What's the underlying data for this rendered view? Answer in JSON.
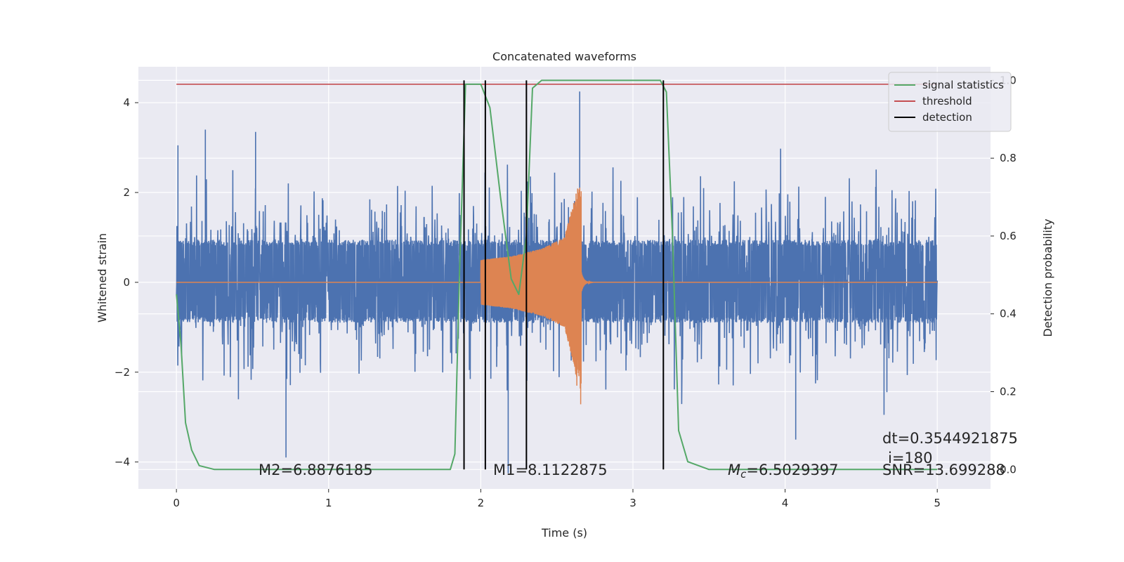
{
  "chart_data": {
    "type": "line",
    "title": "Concatenated waveforms",
    "xlabel": "Time (s)",
    "ylabel_left": "Whitened strain",
    "ylabel_right": "Detection probability",
    "xlim": [
      -0.25,
      5.35
    ],
    "ylim_left": [
      -4.6,
      4.8
    ],
    "ylim_right": [
      -0.05,
      1.035
    ],
    "x_ticks": [
      0,
      1,
      2,
      3,
      4,
      5
    ],
    "x_tick_labels": [
      "0",
      "1",
      "2",
      "3",
      "4",
      "5"
    ],
    "y_left_ticks": [
      -4,
      -2,
      0,
      2,
      4
    ],
    "y_left_tick_labels": [
      "−4",
      "−2",
      "0",
      "2",
      "4"
    ],
    "y_right_ticks": [
      0.0,
      0.2,
      0.4,
      0.6,
      0.8,
      1.0
    ],
    "y_right_tick_labels": [
      "0.0",
      "0.2",
      "0.4",
      "0.6",
      "0.8",
      "1.0"
    ],
    "grid": true,
    "legend_position": "top-right",
    "legend": [
      "signal statistics",
      "threshold",
      "detection"
    ],
    "colors": {
      "noise": "#4c72b0",
      "template": "#dd8452",
      "statistics": "#55a868",
      "threshold": "#c44e52",
      "detection": "#000000",
      "background": "#eaeaf2"
    },
    "series": [
      {
        "name": "whitened strain (noise)",
        "axis": "left",
        "x_range": [
          0,
          5
        ],
        "typical_band": [
          -0.9,
          0.95
        ],
        "peak_values": [
          {
            "x": 0.01,
            "y": 3.05
          },
          {
            "x": 0.19,
            "y": 3.4
          },
          {
            "x": 0.52,
            "y": 3.35
          },
          {
            "x": 0.72,
            "y": -3.9
          },
          {
            "x": 2.65,
            "y": 4.25
          },
          {
            "x": 2.18,
            "y": -4.25
          },
          {
            "x": 4.07,
            "y": -3.5
          },
          {
            "x": 4.65,
            "y": -2.95
          }
        ]
      },
      {
        "name": "injected waveform",
        "axis": "left",
        "x_range": [
          0,
          5
        ],
        "active_range": [
          2.0,
          2.66
        ],
        "envelope": [
          {
            "x": 2.0,
            "amp": 0.5
          },
          {
            "x": 2.2,
            "amp": 0.58
          },
          {
            "x": 2.4,
            "amp": 0.75
          },
          {
            "x": 2.55,
            "amp": 1.0
          },
          {
            "x": 2.64,
            "amp": 2.2
          }
        ]
      },
      {
        "name": "signal statistics",
        "axis": "right",
        "points": [
          [
            0.0,
            0.45
          ],
          [
            0.03,
            0.32
          ],
          [
            0.06,
            0.12
          ],
          [
            0.1,
            0.05
          ],
          [
            0.15,
            0.01
          ],
          [
            0.25,
            0.0
          ],
          [
            1.0,
            0.0
          ],
          [
            1.8,
            0.0
          ],
          [
            1.83,
            0.04
          ],
          [
            1.86,
            0.5
          ],
          [
            1.9,
            0.99
          ],
          [
            2.0,
            0.99
          ],
          [
            2.06,
            0.93
          ],
          [
            2.13,
            0.7
          ],
          [
            2.2,
            0.49
          ],
          [
            2.25,
            0.45
          ],
          [
            2.3,
            0.6
          ],
          [
            2.34,
            0.98
          ],
          [
            2.4,
            1.0
          ],
          [
            3.18,
            1.0
          ],
          [
            3.22,
            0.97
          ],
          [
            3.26,
            0.6
          ],
          [
            3.3,
            0.1
          ],
          [
            3.36,
            0.02
          ],
          [
            3.5,
            0.0
          ],
          [
            5.0,
            0.0
          ]
        ]
      },
      {
        "name": "threshold",
        "axis": "right",
        "x_range": [
          0,
          5
        ],
        "value": 0.99
      }
    ],
    "detections_x": [
      1.89,
      2.03,
      2.3,
      3.2
    ],
    "annotations": {
      "m2": "M2=6.8876185",
      "m1": "M1=8.1122875",
      "mc_symbol": "M",
      "mc_subscript": "c",
      "mc_value": "=6.5029397",
      "dt": "dt=0.3544921875",
      "i": "i=180",
      "snr": "SNR=13.699288"
    }
  }
}
